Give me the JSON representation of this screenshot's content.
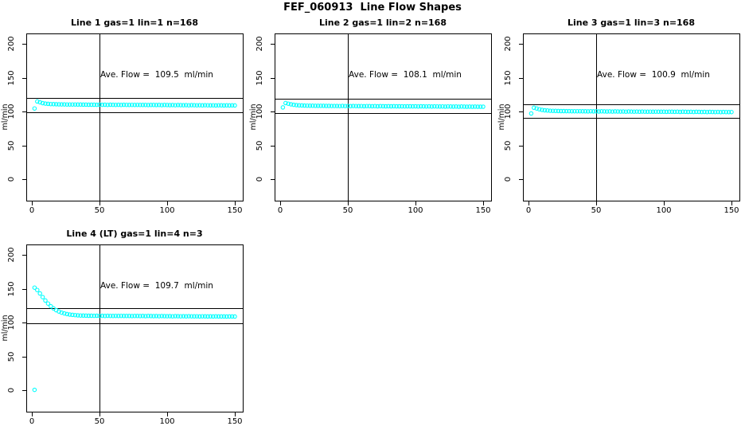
{
  "figure_title": "FEF_060913  Line Flow Shapes",
  "colors": {
    "points": "#00FFFF",
    "axis": "#000000",
    "background": "#FFFFFF"
  },
  "axes": {
    "y_label": "ml/min",
    "y_ticks": [
      "0",
      "50",
      "100",
      "150",
      "200"
    ],
    "x_ticks": [
      "0",
      "50",
      "100",
      "150"
    ],
    "x_range": [
      0,
      150
    ],
    "y_range": [
      0,
      200
    ],
    "grid": false
  },
  "chart_data": [
    {
      "type": "scatter",
      "title": "Line 1 gas=1 lin=1 n=168",
      "annotation": "Ave. Flow =  109.5  ml/min",
      "ave_flow": 109.5,
      "ref_lines": [
        98.6,
        120.5
      ],
      "vline_x": 50,
      "marker": "open-circle",
      "x": {
        "start": 2,
        "step": 2,
        "end": 150
      },
      "y": [
        104.5,
        114.8,
        113.6,
        112.4,
        111.7,
        111.3,
        111.0,
        110.8,
        110.7,
        110.6,
        110.5,
        110.5,
        110.4,
        110.4,
        110.3,
        110.3,
        110.2,
        110.2,
        110.1,
        110.1,
        110.0,
        110.0,
        110.0,
        109.9,
        110.1,
        109.9,
        110.0,
        109.8,
        110.0,
        109.9,
        109.8,
        109.9,
        109.7,
        109.9,
        109.8,
        109.7,
        109.8,
        109.6,
        109.8,
        109.7,
        109.6,
        109.7,
        109.5,
        109.7,
        109.6,
        109.5,
        109.6,
        109.4,
        109.6,
        109.5,
        109.4,
        109.5,
        109.3,
        109.5,
        109.4,
        109.3,
        109.4,
        109.2,
        109.4,
        109.3,
        109.2,
        109.3,
        109.1,
        109.3,
        109.2,
        109.1,
        109.2,
        109.0,
        109.2,
        109.1,
        109.0,
        109.1,
        108.9,
        109.1,
        109.0
      ],
      "extra_points": []
    },
    {
      "type": "scatter",
      "title": "Line 2 gas=1 lin=2 n=168",
      "annotation": "Ave. Flow =  108.1  ml/min",
      "ave_flow": 108.1,
      "ref_lines": [
        97.3,
        118.9
      ],
      "vline_x": 50,
      "marker": "open-circle",
      "x": {
        "start": 2,
        "step": 2,
        "end": 150
      },
      "y": [
        106.0,
        112.5,
        111.5,
        110.6,
        109.9,
        109.4,
        109.1,
        108.9,
        108.7,
        108.6,
        108.5,
        108.5,
        108.4,
        108.4,
        108.3,
        108.3,
        108.2,
        108.2,
        108.1,
        108.1,
        108.1,
        108.0,
        108.2,
        108.0,
        108.1,
        107.9,
        108.1,
        108.0,
        107.9,
        108.0,
        107.8,
        108.0,
        107.9,
        107.8,
        107.9,
        107.7,
        107.9,
        107.8,
        107.7,
        107.8,
        107.6,
        107.8,
        107.7,
        107.6,
        107.7,
        107.5,
        107.7,
        107.6,
        107.5,
        107.6,
        107.4,
        107.6,
        107.5,
        107.4,
        107.5,
        107.3,
        107.5,
        107.4,
        107.3,
        107.4,
        107.2,
        107.4,
        107.3,
        107.2,
        107.3,
        107.1,
        107.3,
        107.2,
        107.1,
        107.2,
        107.0,
        107.2,
        107.1,
        107.0,
        107.1
      ],
      "extra_points": []
    },
    {
      "type": "scatter",
      "title": "Line 3 gas=1 lin=3 n=168",
      "annotation": "Ave. Flow =  100.9  ml/min",
      "ave_flow": 100.9,
      "ref_lines": [
        90.8,
        111.0
      ],
      "vline_x": 50,
      "marker": "open-circle",
      "x": {
        "start": 2,
        "step": 2,
        "end": 150
      },
      "y": [
        97.0,
        105.5,
        104.5,
        103.3,
        102.4,
        101.8,
        101.4,
        101.1,
        100.9,
        100.8,
        100.7,
        100.6,
        100.6,
        100.5,
        100.5,
        100.4,
        100.4,
        100.3,
        100.3,
        100.2,
        100.2,
        100.1,
        100.3,
        100.1,
        100.2,
        100.0,
        100.2,
        100.1,
        100.0,
        100.1,
        99.9,
        100.1,
        100.0,
        99.9,
        100.0,
        99.8,
        100.0,
        99.9,
        99.8,
        99.9,
        99.7,
        99.9,
        99.8,
        99.7,
        99.8,
        99.6,
        99.8,
        99.7,
        99.6,
        99.7,
        99.5,
        99.7,
        99.6,
        99.5,
        99.6,
        99.4,
        99.6,
        99.5,
        99.4,
        99.5,
        99.3,
        99.5,
        99.4,
        99.3,
        99.4,
        99.2,
        99.4,
        99.3,
        99.2,
        99.3,
        99.1,
        99.3,
        99.2,
        99.1,
        99.2
      ],
      "extra_points": []
    },
    {
      "type": "scatter",
      "title": "Line 4 (LT) gas=1 lin=4 n=3",
      "annotation": "Ave. Flow =  109.7  ml/min",
      "ave_flow": 109.7,
      "ref_lines": [
        98.7,
        120.7
      ],
      "vline_x": 50,
      "marker": "open-circle",
      "x": {
        "start": 2,
        "step": 2,
        "end": 150
      },
      "y": [
        151.5,
        148.0,
        143.0,
        137.5,
        132.5,
        128.0,
        124.0,
        120.8,
        118.2,
        116.2,
        114.6,
        113.4,
        112.5,
        111.8,
        111.3,
        110.9,
        110.6,
        110.4,
        110.2,
        110.1,
        110.0,
        110.0,
        109.9,
        110.0,
        109.8,
        109.9,
        109.7,
        109.9,
        109.8,
        109.7,
        109.8,
        109.6,
        109.8,
        109.7,
        109.6,
        109.7,
        109.5,
        109.7,
        109.6,
        109.5,
        109.6,
        109.4,
        109.6,
        109.5,
        109.4,
        109.5,
        109.3,
        109.5,
        109.4,
        109.3,
        109.4,
        109.2,
        109.4,
        109.3,
        109.2,
        109.3,
        109.1,
        109.3,
        109.2,
        109.1,
        109.2,
        109.0,
        109.2,
        109.1,
        109.0,
        109.1,
        108.9,
        109.1,
        109.0,
        108.9,
        109.0,
        108.8,
        109.0,
        108.9,
        108.8
      ],
      "extra_points": [
        [
          2,
          0.5
        ]
      ]
    }
  ]
}
